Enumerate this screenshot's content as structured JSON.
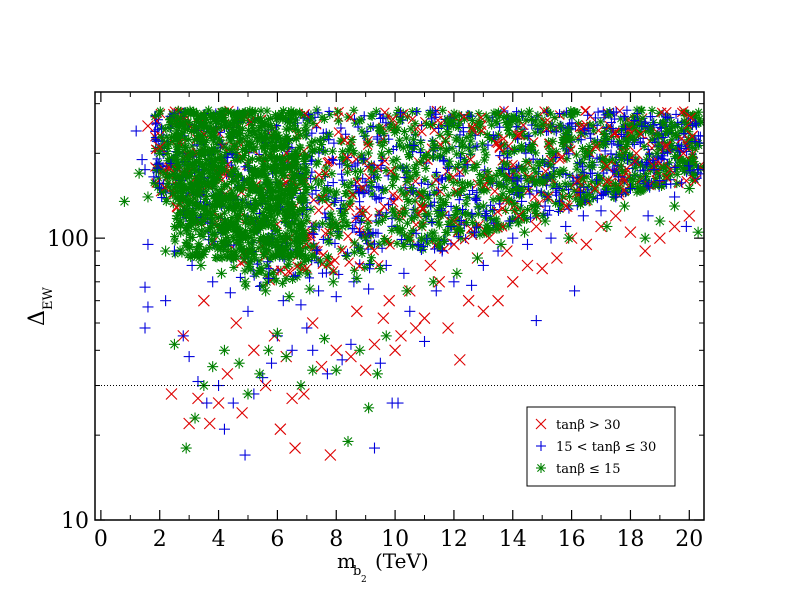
{
  "chart_data": {
    "type": "scatter",
    "title": "",
    "xlabel": {
      "main": "m",
      "sub": "b",
      "subsub": "2",
      "unit": "(TeV)"
    },
    "ylabel": {
      "main": "Δ",
      "sub": "EW"
    },
    "xlim": [
      -0.2,
      20.5
    ],
    "ylim": [
      10,
      330
    ],
    "yscale": "log",
    "xticks": [
      "0",
      "2",
      "4",
      "6",
      "8",
      "10",
      "12",
      "14",
      "16",
      "18",
      "20"
    ],
    "yticks": [
      "10",
      "100"
    ],
    "reference_line": {
      "y": 30,
      "style": "dotted"
    },
    "legend_position": "bottom-right",
    "series": [
      {
        "name": "tanβ > 30",
        "marker": "x",
        "color": "#dd0000",
        "points": [
          [
            1.6,
            250
          ],
          [
            2.0,
            210
          ],
          [
            2.4,
            28
          ],
          [
            3.0,
            22
          ],
          [
            3.3,
            27
          ],
          [
            3.7,
            22
          ],
          [
            4.0,
            26
          ],
          [
            4.3,
            33
          ],
          [
            4.8,
            24
          ],
          [
            5.2,
            40
          ],
          [
            5.6,
            30
          ],
          [
            6.1,
            21
          ],
          [
            6.5,
            27
          ],
          [
            6.6,
            18
          ],
          [
            6.9,
            28
          ],
          [
            7.8,
            17
          ],
          [
            8.0,
            40
          ],
          [
            8.5,
            38
          ],
          [
            9.0,
            34
          ],
          [
            9.3,
            42
          ],
          [
            10.0,
            40
          ],
          [
            10.2,
            45
          ],
          [
            10.7,
            48
          ],
          [
            11.0,
            52
          ],
          [
            11.8,
            48
          ],
          [
            12.2,
            37
          ],
          [
            12.5,
            60
          ],
          [
            13.0,
            55
          ],
          [
            13.5,
            60
          ],
          [
            14.0,
            70
          ],
          [
            14.5,
            80
          ],
          [
            15.0,
            78
          ],
          [
            15.5,
            85
          ],
          [
            16.0,
            100
          ],
          [
            16.5,
            95
          ],
          [
            17.0,
            110
          ],
          [
            17.5,
            120
          ],
          [
            18.0,
            105
          ],
          [
            18.5,
            90
          ],
          [
            19.0,
            100
          ],
          [
            19.5,
            110
          ],
          [
            20.0,
            120
          ],
          [
            20.2,
            160
          ],
          [
            3.5,
            60
          ],
          [
            4.6,
            50
          ],
          [
            5.9,
            45
          ],
          [
            7.2,
            50
          ],
          [
            8.7,
            55
          ],
          [
            9.8,
            60
          ],
          [
            11.5,
            70
          ],
          [
            12.8,
            85
          ],
          [
            13.8,
            90
          ],
          [
            14.8,
            110
          ],
          [
            15.8,
            130
          ],
          [
            16.8,
            150
          ],
          [
            17.8,
            160
          ],
          [
            18.8,
            180
          ],
          [
            19.8,
            200
          ],
          [
            2.8,
            45
          ],
          [
            6.3,
            38
          ],
          [
            7.5,
            35
          ],
          [
            9.6,
            52
          ],
          [
            10.5,
            65
          ],
          [
            11.2,
            80
          ],
          [
            12.0,
            95
          ],
          [
            13.2,
            100
          ],
          [
            14.2,
            120
          ],
          [
            15.2,
            140
          ],
          [
            16.2,
            160
          ],
          [
            17.2,
            180
          ],
          [
            18.2,
            200
          ],
          [
            19.2,
            210
          ],
          [
            20.1,
            230
          ]
        ]
      },
      {
        "name": "15 < tanβ ≤ 30",
        "marker": "plus",
        "color": "#0000dd",
        "points": [
          [
            1.2,
            240
          ],
          [
            1.4,
            190
          ],
          [
            1.5,
            175
          ],
          [
            1.8,
            165
          ],
          [
            1.6,
            95
          ],
          [
            1.5,
            67
          ],
          [
            1.6,
            57
          ],
          [
            1.5,
            48
          ],
          [
            2.2,
            60
          ],
          [
            2.8,
            45
          ],
          [
            3.0,
            38
          ],
          [
            3.3,
            31
          ],
          [
            3.6,
            26
          ],
          [
            4.0,
            30
          ],
          [
            4.2,
            21
          ],
          [
            4.5,
            26
          ],
          [
            4.9,
            17
          ],
          [
            5.2,
            28
          ],
          [
            5.5,
            32
          ],
          [
            5.8,
            36
          ],
          [
            6.0,
            45
          ],
          [
            6.5,
            40
          ],
          [
            7.0,
            48
          ],
          [
            7.2,
            40
          ],
          [
            7.7,
            33
          ],
          [
            8.2,
            37
          ],
          [
            8.5,
            42
          ],
          [
            9.3,
            18
          ],
          [
            9.5,
            36
          ],
          [
            9.9,
            26
          ],
          [
            10.1,
            26
          ],
          [
            10.5,
            55
          ],
          [
            11.0,
            43
          ],
          [
            11.4,
            65
          ],
          [
            12.0,
            70
          ],
          [
            12.6,
            68
          ],
          [
            13.0,
            80
          ],
          [
            13.5,
            90
          ],
          [
            14.0,
            100
          ],
          [
            14.5,
            95
          ],
          [
            14.8,
            51
          ],
          [
            15.3,
            100
          ],
          [
            15.8,
            110
          ],
          [
            16.1,
            65
          ],
          [
            16.4,
            120
          ],
          [
            17.0,
            125
          ],
          [
            17.5,
            140
          ],
          [
            18.0,
            150
          ],
          [
            18.6,
            120
          ],
          [
            19.0,
            160
          ],
          [
            19.5,
            140
          ],
          [
            19.9,
            110
          ],
          [
            20.3,
            175
          ],
          [
            2.5,
            90
          ],
          [
            3.8,
            70
          ],
          [
            5.0,
            55
          ],
          [
            6.2,
            60
          ],
          [
            7.4,
            65
          ],
          [
            8.6,
            70
          ],
          [
            9.7,
            80
          ],
          [
            10.8,
            95
          ],
          [
            11.9,
            110
          ],
          [
            13.1,
            120
          ],
          [
            14.3,
            135
          ],
          [
            15.5,
            150
          ],
          [
            16.7,
            170
          ],
          [
            17.9,
            190
          ],
          [
            19.1,
            200
          ],
          [
            20.2,
            220
          ],
          [
            3.1,
            80
          ],
          [
            4.4,
            64
          ],
          [
            5.7,
            72
          ],
          [
            6.8,
            58
          ],
          [
            8.0,
            62
          ],
          [
            9.1,
            66
          ],
          [
            10.3,
            75
          ],
          [
            11.6,
            90
          ],
          [
            12.7,
            105
          ],
          [
            13.9,
            115
          ],
          [
            15.1,
            130
          ],
          [
            16.3,
            145
          ],
          [
            17.6,
            165
          ],
          [
            18.8,
            175
          ]
        ]
      },
      {
        "name": "tanβ ≤ 15",
        "marker": "star",
        "color": "#008000",
        "points": [
          [
            0.8,
            135
          ],
          [
            1.3,
            170
          ],
          [
            1.6,
            140
          ],
          [
            2.2,
            90
          ],
          [
            2.5,
            42
          ],
          [
            2.9,
            18
          ],
          [
            3.2,
            23
          ],
          [
            3.5,
            30
          ],
          [
            3.8,
            35
          ],
          [
            4.2,
            40
          ],
          [
            4.7,
            36
          ],
          [
            5.0,
            28
          ],
          [
            5.4,
            33
          ],
          [
            5.7,
            40
          ],
          [
            6.0,
            46
          ],
          [
            6.3,
            38
          ],
          [
            6.8,
            30
          ],
          [
            7.2,
            34
          ],
          [
            7.6,
            44
          ],
          [
            8.0,
            34
          ],
          [
            8.4,
            19
          ],
          [
            8.8,
            40
          ],
          [
            9.1,
            25
          ],
          [
            9.4,
            33
          ],
          [
            9.7,
            45
          ],
          [
            10.4,
            65
          ],
          [
            11.3,
            70
          ],
          [
            12.1,
            75
          ],
          [
            12.8,
            85
          ],
          [
            13.6,
            95
          ],
          [
            14.4,
            105
          ],
          [
            15.1,
            115
          ],
          [
            15.9,
            100
          ],
          [
            16.5,
            140
          ],
          [
            17.2,
            110
          ],
          [
            17.8,
            130
          ],
          [
            18.5,
            100
          ],
          [
            19.0,
            115
          ],
          [
            19.5,
            130
          ],
          [
            20.0,
            150
          ],
          [
            20.3,
            105
          ],
          [
            2.0,
            200
          ],
          [
            2.6,
            120
          ],
          [
            3.4,
            80
          ],
          [
            4.1,
            75
          ],
          [
            4.9,
            70
          ],
          [
            5.6,
            65
          ],
          [
            6.4,
            62
          ],
          [
            7.1,
            66
          ],
          [
            7.9,
            70
          ],
          [
            8.7,
            72
          ],
          [
            9.5,
            78
          ],
          [
            10.9,
            100
          ],
          [
            11.9,
            115
          ],
          [
            13.0,
            130
          ],
          [
            14.1,
            150
          ],
          [
            15.3,
            165
          ],
          [
            16.6,
            180
          ],
          [
            17.7,
            190
          ],
          [
            18.9,
            200
          ],
          [
            20.1,
            210
          ],
          [
            3.0,
            150
          ],
          [
            4.5,
            140
          ],
          [
            5.3,
            130
          ],
          [
            6.7,
            120
          ],
          [
            8.2,
            110
          ],
          [
            9.0,
            100
          ],
          [
            10.0,
            120
          ]
        ]
      }
    ]
  }
}
